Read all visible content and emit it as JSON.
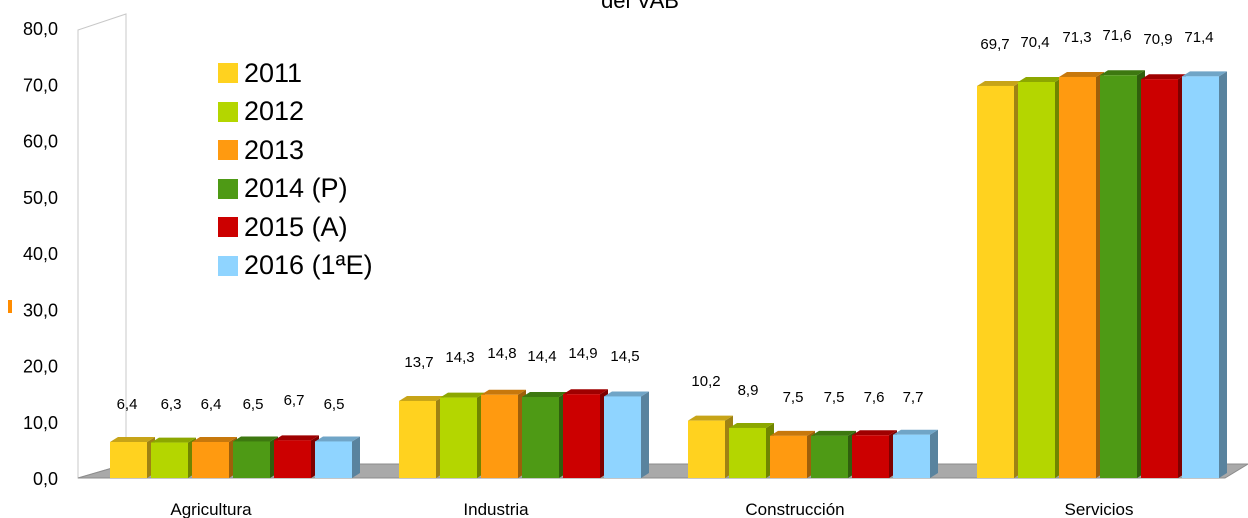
{
  "title_fragment": "del VAB",
  "chart_data": {
    "type": "bar",
    "categories": [
      "Agricultura",
      "Industria",
      "Construcción",
      "Servicios"
    ],
    "series": [
      {
        "name": "2011",
        "color": "#ffd21f",
        "values": [
          6.4,
          13.7,
          10.2,
          69.7
        ]
      },
      {
        "name": "2012",
        "color": "#b4d600",
        "values": [
          6.3,
          14.3,
          8.9,
          70.4
        ]
      },
      {
        "name": "2013",
        "color": "#ff9a10",
        "values": [
          6.4,
          14.8,
          7.5,
          71.3
        ]
      },
      {
        "name": "2014 (P)",
        "color": "#4e9a15",
        "values": [
          6.5,
          14.4,
          7.5,
          71.6
        ]
      },
      {
        "name": "2015 (A)",
        "color": "#cc0000",
        "values": [
          6.7,
          14.9,
          7.6,
          70.9
        ]
      },
      {
        "name": "2016 (1ªE)",
        "color": "#8fd4ff",
        "values": [
          6.5,
          14.5,
          7.7,
          71.4
        ]
      }
    ],
    "value_labels": [
      [
        "6,4",
        "6,3",
        "6,4",
        "6,5",
        "6,7",
        "6,5"
      ],
      [
        "13,7",
        "14,3",
        "14,8",
        "14,4",
        "14,9",
        "14,5"
      ],
      [
        "10,2",
        "8,9",
        "7,5",
        "7,5",
        "7,6",
        "7,7"
      ],
      [
        "69,7",
        "70,4",
        "71,3",
        "71,6",
        "70,9",
        "71,4"
      ]
    ],
    "yticks": [
      "0,0",
      "10,0",
      "20,0",
      "30,0",
      "40,0",
      "50,0",
      "60,0",
      "70,0",
      "80,0"
    ],
    "ylim": [
      0,
      80
    ],
    "legend_position": "top-left",
    "grid": false,
    "style": "3d-bars"
  }
}
